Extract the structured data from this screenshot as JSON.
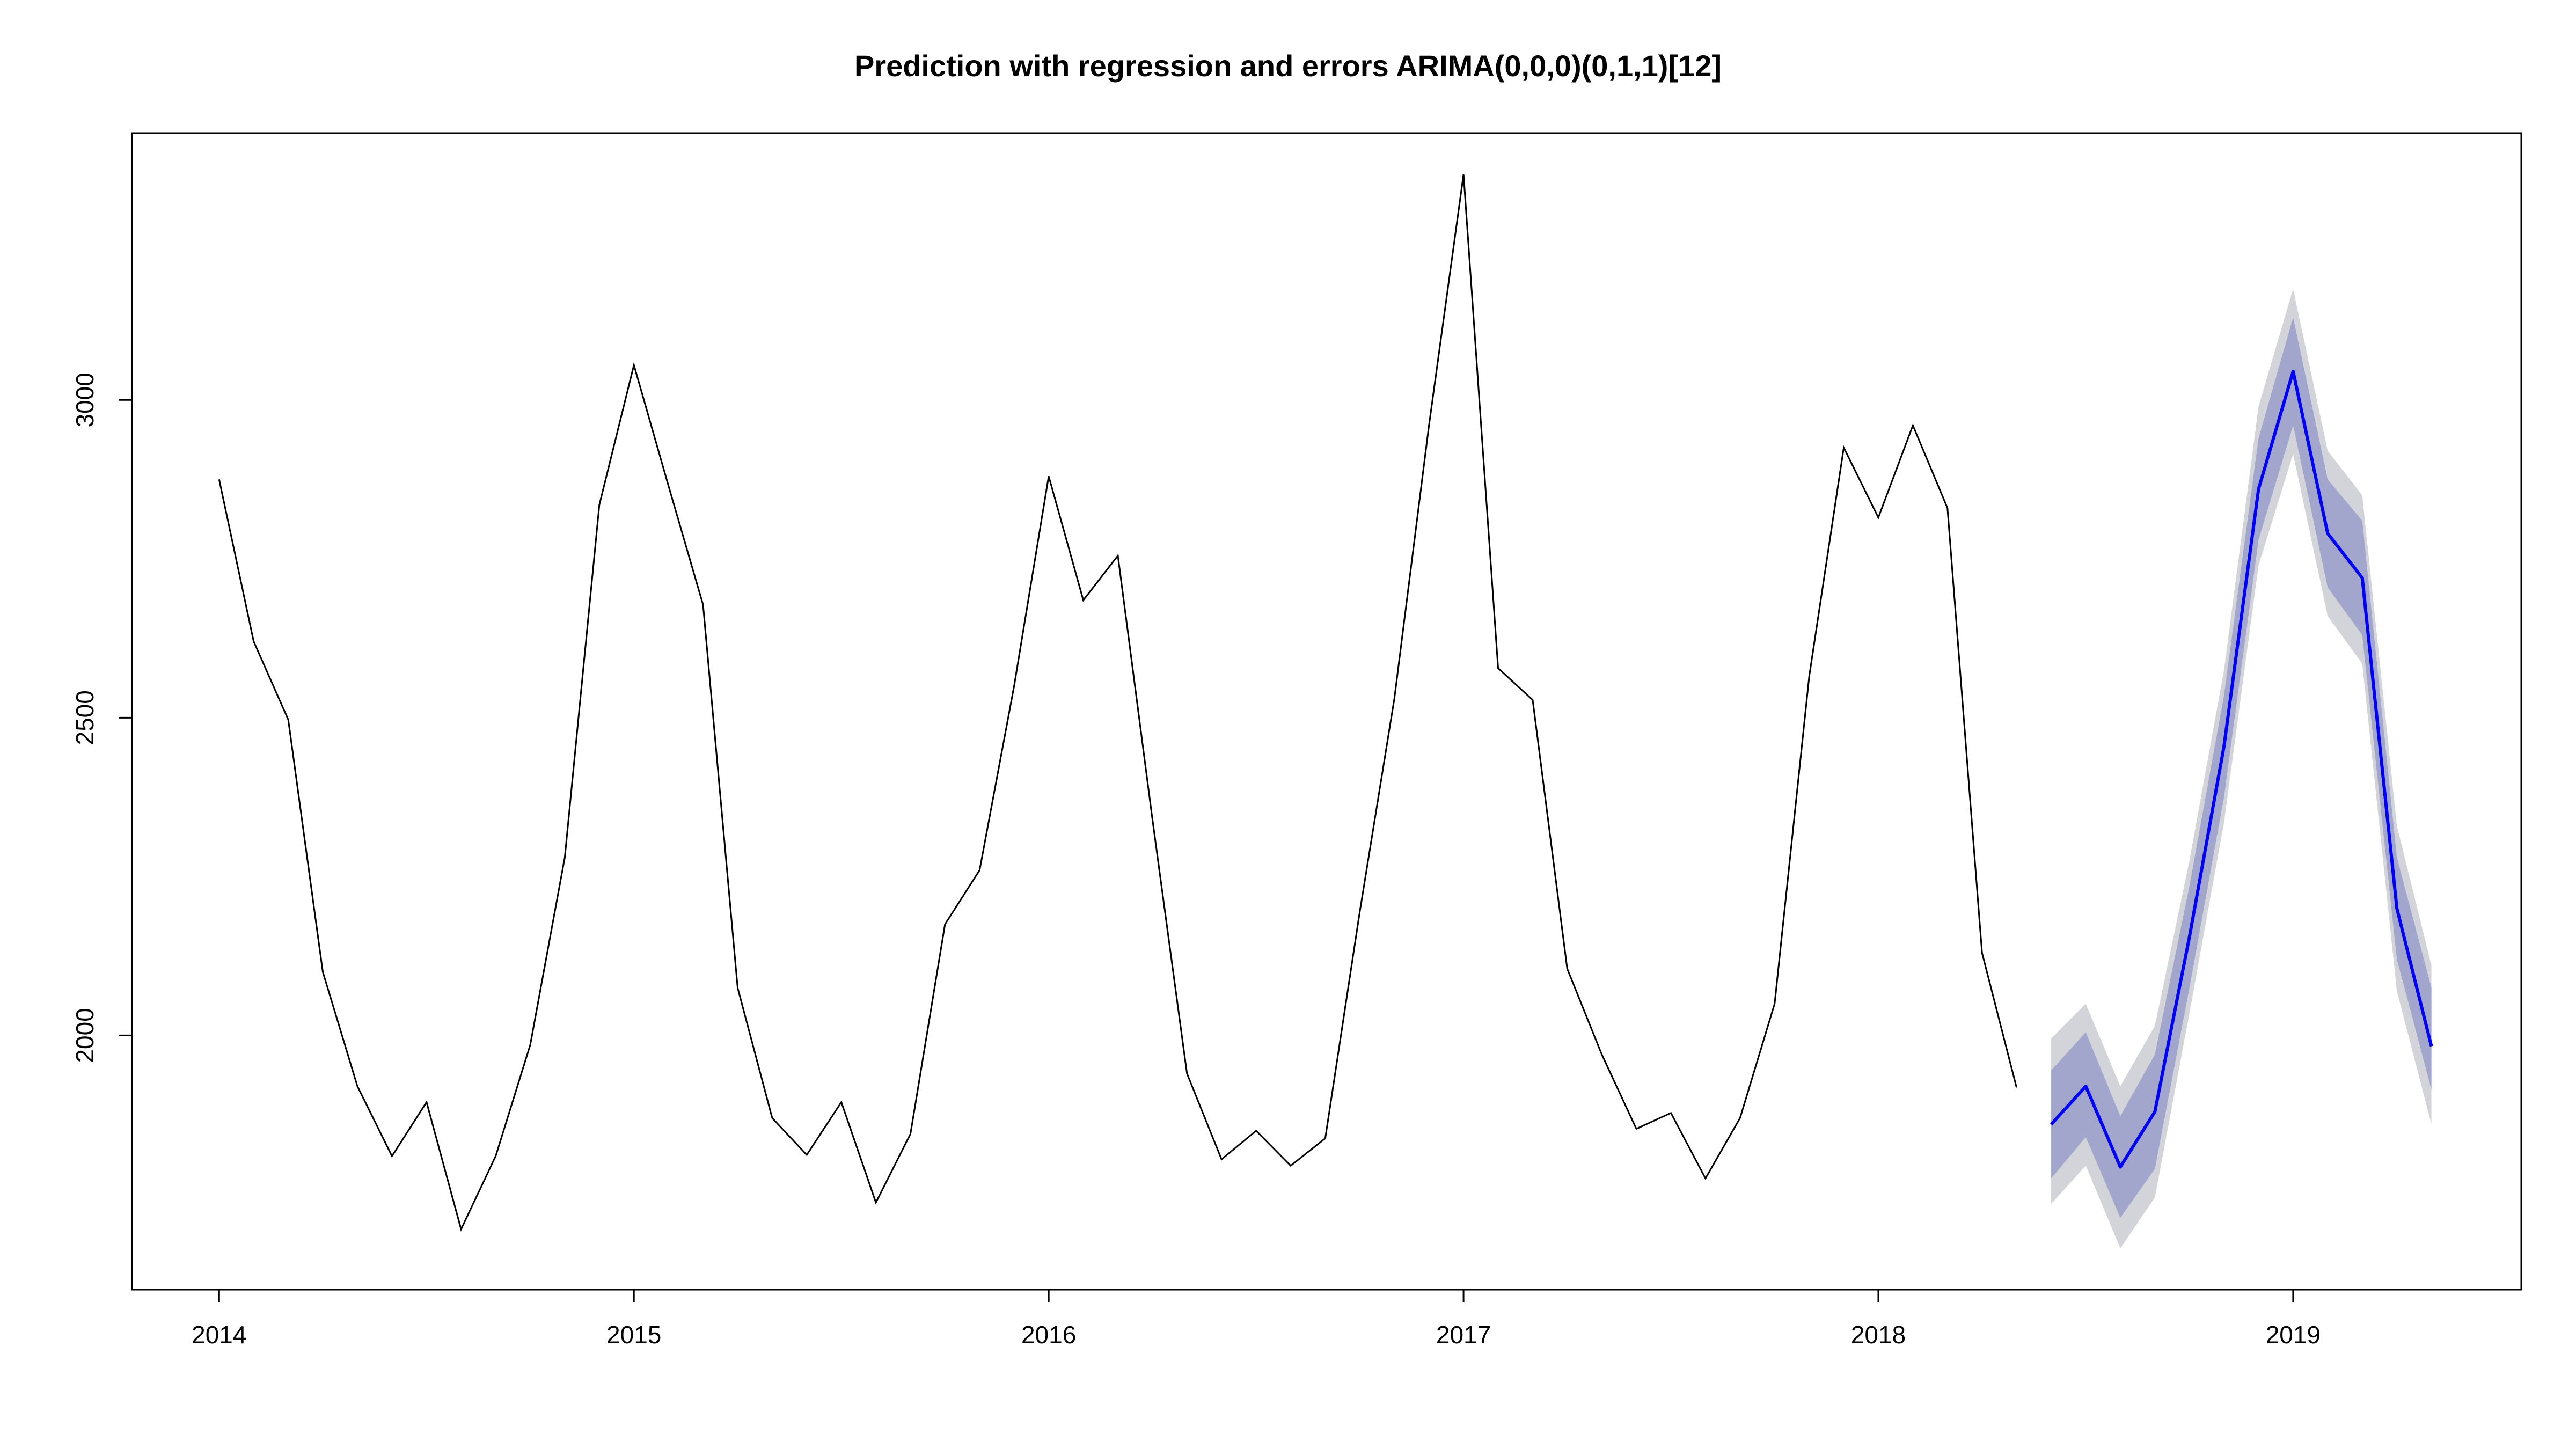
{
  "chart_data": {
    "type": "line",
    "title": "Prediction with regression and errors ARIMA(0,0,0)(0,1,1)[12]",
    "xlabel": "",
    "ylabel": "",
    "xlim": [
      2013.79,
      2019.55
    ],
    "ylim": [
      1600,
      3420
    ],
    "x_ticks": [
      2014,
      2015,
      2016,
      2017,
      2018,
      2019
    ],
    "x_tick_labels": [
      "2014",
      "2015",
      "2016",
      "2017",
      "2018",
      "2019"
    ],
    "y_ticks": [
      2000,
      2500,
      3000
    ],
    "y_tick_labels": [
      "2000",
      "2500",
      "3000"
    ],
    "grid": false,
    "legend": "none",
    "colors": {
      "observed": "#000000",
      "forecast": "#0000ff",
      "band80": "#a2a6cc",
      "band95": "#d3d4d9"
    },
    "observed": {
      "start": 2014.0,
      "frequency": 12,
      "values": [
        2875,
        2620,
        2497,
        2100,
        1920,
        1810,
        1895,
        1695,
        1810,
        1985,
        2280,
        2835,
        3055,
        2865,
        2678,
        2075,
        1870,
        1812,
        1895,
        1737,
        1845,
        2175,
        2260,
        2550,
        2880,
        2685,
        2755,
        2340,
        1940,
        1805,
        1850,
        1795,
        1838,
        2195,
        2530,
        2960,
        3355,
        2578,
        2528,
        2105,
        1970,
        1853,
        1878,
        1775,
        1870,
        2050,
        2565,
        2925,
        2815,
        2960,
        2830,
        2130,
        1918
      ]
    },
    "forecast": {
      "start": 2018.4167,
      "frequency": 12,
      "mean": [
        1860,
        1920,
        1793,
        1880,
        2155,
        2455,
        2860,
        3045,
        2790,
        2720,
        2200,
        1983
      ],
      "lo80": [
        1775,
        1840,
        1713,
        1790,
        2075,
        2375,
        2780,
        2960,
        2705,
        2630,
        2120,
        1915
      ],
      "hi80": [
        1945,
        2005,
        1873,
        1970,
        2235,
        2535,
        2940,
        3130,
        2875,
        2810,
        2280,
        2075
      ],
      "lo95": [
        1735,
        1795,
        1665,
        1745,
        2035,
        2335,
        2740,
        2915,
        2660,
        2585,
        2070,
        1860
      ],
      "hi95": [
        1995,
        2050,
        1920,
        2015,
        2275,
        2575,
        2990,
        3175,
        2920,
        2850,
        2330,
        2110
      ]
    }
  }
}
